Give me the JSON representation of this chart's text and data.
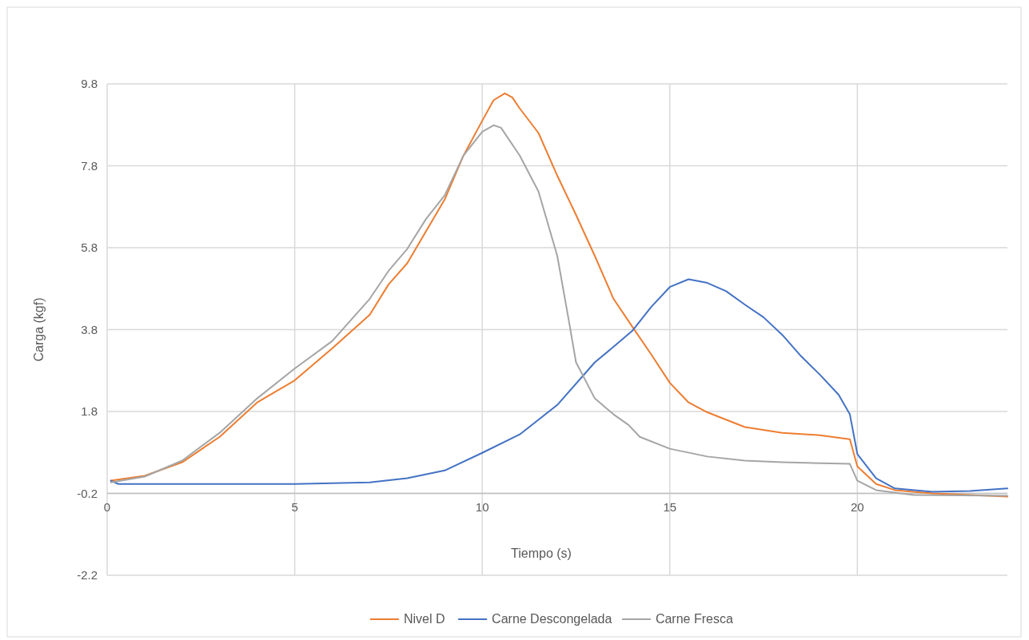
{
  "chart_data": {
    "type": "line",
    "xlabel": "Tiempo (s)",
    "ylabel": "Carga (kgf)",
    "xlim": [
      0,
      24
    ],
    "xticks": [
      0,
      5,
      10,
      15,
      20
    ],
    "ylim": [
      -2.2,
      9.8
    ],
    "yticks": [
      -2.2,
      -0.2,
      1.8,
      3.8,
      5.8,
      7.8,
      9.8
    ],
    "grid": true,
    "legend": "bottom",
    "line_style": "solid",
    "marker": "none",
    "series": [
      {
        "name": "Nivel D",
        "color": "#ed7d31",
        "x": [
          0.1,
          1,
          2,
          3,
          4,
          5,
          6,
          7,
          7.5,
          8,
          8.5,
          9,
          9.5,
          10,
          10.3,
          10.6,
          10.8,
          11,
          11.5,
          12,
          12.5,
          13,
          13.5,
          14,
          14.5,
          15,
          15.5,
          16,
          17,
          18,
          19,
          19.8,
          20,
          20.5,
          21,
          22,
          24
        ],
        "values": [
          0.11,
          0.23,
          0.56,
          1.18,
          2.02,
          2.56,
          3.34,
          4.16,
          4.9,
          5.42,
          6.2,
          6.98,
          8.05,
          8.9,
          9.4,
          9.57,
          9.47,
          9.2,
          8.6,
          7.56,
          6.6,
          5.6,
          4.55,
          3.87,
          3.2,
          2.5,
          2.02,
          1.78,
          1.42,
          1.28,
          1.22,
          1.12,
          0.46,
          0.03,
          -0.12,
          -0.2,
          -0.28
        ]
      },
      {
        "name": "Carne Descongelada",
        "color": "#4472c4",
        "x": [
          0.1,
          0.3,
          2,
          5,
          7,
          8,
          9,
          10,
          11,
          12,
          13,
          13.5,
          14,
          14.5,
          15,
          15.5,
          16,
          16.5,
          17,
          17.5,
          18,
          18.5,
          19,
          19.5,
          19.8,
          20,
          20.5,
          21,
          22,
          23,
          24
        ],
        "values": [
          0.11,
          0.03,
          0.03,
          0.03,
          0.07,
          0.17,
          0.36,
          0.79,
          1.24,
          1.96,
          3.0,
          3.38,
          3.77,
          4.35,
          4.84,
          5.03,
          4.94,
          4.74,
          4.41,
          4.1,
          3.67,
          3.15,
          2.7,
          2.21,
          1.73,
          0.76,
          0.17,
          -0.08,
          -0.16,
          -0.14,
          -0.08
        ]
      },
      {
        "name": "Carne Fresca",
        "color": "#a5a5a5",
        "x": [
          0.1,
          1,
          2,
          3,
          4,
          5,
          6,
          7,
          7.5,
          8,
          8.5,
          9,
          9.5,
          10,
          10.3,
          10.5,
          11,
          11.5,
          12,
          12.3,
          12.5,
          13,
          13.5,
          13.9,
          14.2,
          15,
          16,
          17,
          18,
          19.8,
          20,
          20.5,
          21.5,
          24
        ],
        "values": [
          0.07,
          0.21,
          0.6,
          1.28,
          2.12,
          2.85,
          3.52,
          4.55,
          5.23,
          5.77,
          6.5,
          7.08,
          8.05,
          8.63,
          8.79,
          8.73,
          8.05,
          7.17,
          5.6,
          4.06,
          3.0,
          2.12,
          1.73,
          1.47,
          1.18,
          0.89,
          0.7,
          0.6,
          0.56,
          0.52,
          0.11,
          -0.12,
          -0.24,
          -0.26
        ]
      }
    ]
  }
}
